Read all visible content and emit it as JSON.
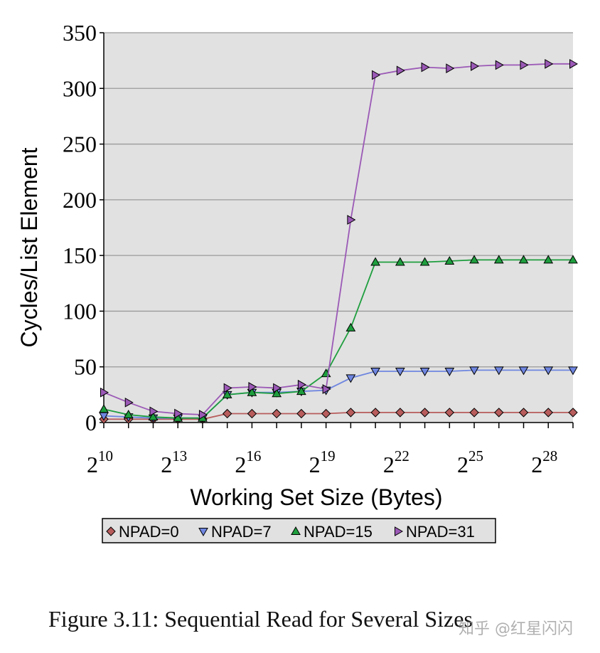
{
  "chart_data": {
    "type": "line",
    "xlabel": "Working Set Size (Bytes)",
    "ylabel": "Cycles/List Element",
    "x_scale": "log2",
    "xlim": [
      10,
      29
    ],
    "ylim": [
      0,
      350
    ],
    "y_ticks": [
      0,
      50,
      100,
      150,
      200,
      250,
      300,
      350
    ],
    "x_ticks": [
      {
        "exp": 10,
        "base": "2",
        "sup": "10"
      },
      {
        "exp": 13,
        "base": "2",
        "sup": "13"
      },
      {
        "exp": 16,
        "base": "2",
        "sup": "16"
      },
      {
        "exp": 19,
        "base": "2",
        "sup": "19"
      },
      {
        "exp": 22,
        "base": "2",
        "sup": "22"
      },
      {
        "exp": 25,
        "base": "2",
        "sup": "25"
      },
      {
        "exp": 28,
        "base": "2",
        "sup": "28"
      }
    ],
    "grid": true,
    "legend_position": "bottom",
    "x": [
      10,
      11,
      12,
      13,
      14,
      15,
      16,
      17,
      18,
      19,
      20,
      21,
      22,
      23,
      24,
      25,
      26,
      27,
      28,
      29
    ],
    "series": [
      {
        "name": "NPAD=0",
        "color": "#b85c5c",
        "marker": "diamond",
        "values": [
          3,
          3,
          3,
          3,
          3,
          8,
          8,
          8,
          8,
          8,
          9,
          9,
          9,
          9,
          9,
          9,
          9,
          9,
          9,
          9
        ]
      },
      {
        "name": "NPAD=7",
        "color": "#6f86e0",
        "marker": "triangle-down",
        "values": [
          6,
          5,
          4,
          4,
          4,
          25,
          27,
          27,
          28,
          29,
          40,
          46,
          46,
          46,
          46,
          47,
          47,
          47,
          47,
          47
        ]
      },
      {
        "name": "NPAD=15",
        "color": "#1e9e3e",
        "marker": "triangle-up",
        "values": [
          12,
          7,
          5,
          4,
          4,
          25,
          27,
          26,
          28,
          44,
          85,
          144,
          144,
          144,
          145,
          146,
          146,
          146,
          146,
          146
        ]
      },
      {
        "name": "NPAD=31",
        "color": "#9b59b6",
        "marker": "triangle-right",
        "values": [
          27,
          18,
          10,
          8,
          7,
          31,
          32,
          31,
          34,
          30,
          182,
          312,
          316,
          319,
          318,
          320,
          321,
          321,
          322,
          322
        ]
      }
    ]
  },
  "caption": "Figure 3.11: Sequential Read for Several Sizes",
  "watermark": "知乎 @红星闪闪"
}
